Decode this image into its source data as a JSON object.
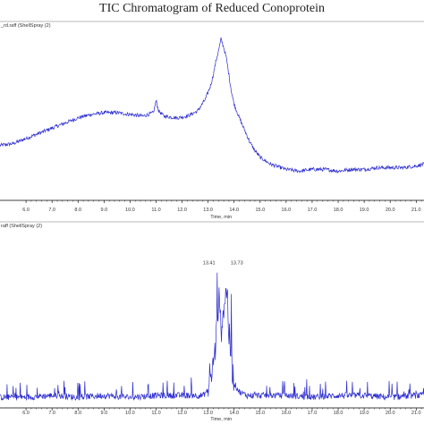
{
  "title": "TIC Chromatogram of Reduced Conoprotein",
  "colors": {
    "trace": "#2a2acf",
    "axis": "#000000",
    "frame": "#777777"
  },
  "chart_data": [
    {
      "type": "line",
      "panel_label": "_rd.raff (ShellSpray (2)",
      "xlabel": "Time, min",
      "ylabel": "",
      "xlim": [
        5.0,
        21.3
      ],
      "x_ticks": [
        "6.0",
        "7.0",
        "8.0",
        "9.0",
        "10.0",
        "11.0",
        "12.0",
        "13.0",
        "14.0",
        "15.0",
        "16.0",
        "17.0",
        "18.0",
        "19.0",
        "20.0",
        "21.0"
      ],
      "series": [
        {
          "x": [
            5.0,
            5.5,
            6.0,
            6.5,
            7.0,
            7.5,
            8.0,
            8.5,
            9.0,
            9.5,
            10.0,
            10.5,
            10.9,
            11.0,
            11.1,
            11.3,
            11.8,
            12.2,
            12.6,
            12.9,
            13.1,
            13.2,
            13.3,
            13.4,
            13.5,
            13.6,
            13.7,
            13.8,
            13.9,
            14.0,
            14.2,
            14.4,
            14.6,
            14.8,
            15.0,
            15.2,
            15.4,
            15.6,
            15.8,
            16.0,
            16.5,
            17.0,
            17.5,
            18.0,
            18.5,
            19.0,
            19.5,
            20.0,
            20.5,
            21.0,
            21.3
          ],
          "y": [
            0.31,
            0.32,
            0.35,
            0.38,
            0.41,
            0.44,
            0.47,
            0.49,
            0.5,
            0.5,
            0.49,
            0.48,
            0.5,
            0.57,
            0.51,
            0.48,
            0.47,
            0.48,
            0.51,
            0.58,
            0.66,
            0.72,
            0.8,
            0.86,
            0.93,
            0.88,
            0.82,
            0.72,
            0.62,
            0.55,
            0.47,
            0.4,
            0.33,
            0.28,
            0.24,
            0.22,
            0.2,
            0.19,
            0.18,
            0.17,
            0.16,
            0.17,
            0.17,
            0.16,
            0.17,
            0.17,
            0.18,
            0.18,
            0.18,
            0.19,
            0.2
          ]
        }
      ]
    },
    {
      "type": "line",
      "panel_label": "raff (ShellSpray (2)",
      "xlabel": "Time, min",
      "ylabel": "",
      "xlim": [
        5.0,
        21.3
      ],
      "x_ticks": [
        "6.0",
        "7.0",
        "8.0",
        "9.0",
        "10.0",
        "11.0",
        "12.0",
        "13.0",
        "14.0",
        "15.0",
        "16.0",
        "17.0",
        "18.0",
        "19.0",
        "20.0",
        "21.0"
      ],
      "peak_labels": [
        {
          "x": 13.41,
          "y": 0.78,
          "text": "13.41"
        },
        {
          "x": 13.73,
          "y": 0.78,
          "text": "13.73"
        }
      ],
      "series": [
        {
          "x": [
            5.0,
            6.0,
            7.0,
            8.0,
            9.0,
            10.0,
            11.0,
            12.0,
            12.8,
            13.0,
            13.2,
            13.3,
            13.41,
            13.5,
            13.6,
            13.73,
            13.8,
            13.9,
            14.0,
            14.2,
            14.5,
            15.0,
            16.0,
            17.0,
            18.0,
            19.0,
            20.0,
            21.0,
            21.3
          ],
          "y": [
            0.04,
            0.04,
            0.05,
            0.04,
            0.05,
            0.04,
            0.05,
            0.05,
            0.05,
            0.08,
            0.22,
            0.35,
            0.6,
            0.42,
            0.55,
            0.66,
            0.4,
            0.25,
            0.12,
            0.07,
            0.05,
            0.05,
            0.05,
            0.04,
            0.05,
            0.05,
            0.04,
            0.05,
            0.05
          ]
        }
      ]
    }
  ]
}
